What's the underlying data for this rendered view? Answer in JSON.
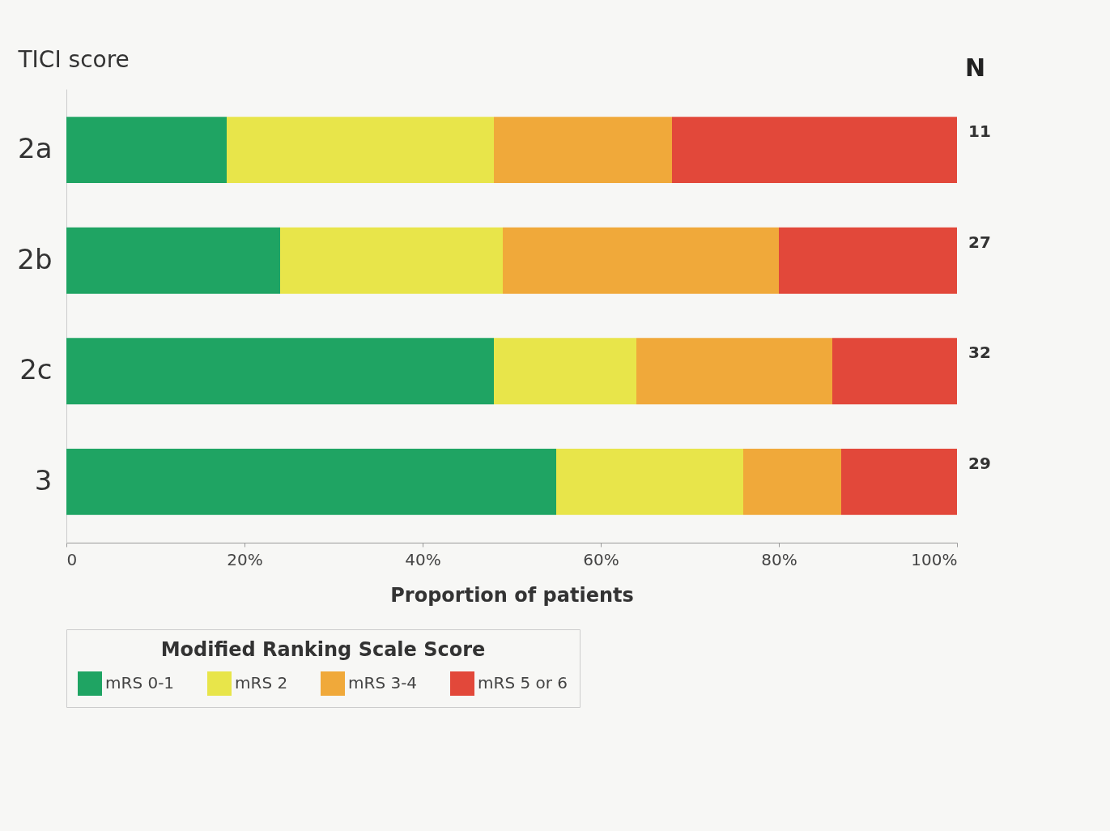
{
  "chart_data": {
    "type": "bar",
    "orientation": "horizontal",
    "stacked": true,
    "ylabel": "TICI score",
    "xlabel": "Proportion of patients",
    "legend_title": "Modified Ranking Scale Score",
    "legend": "bottom",
    "grid": false,
    "categories": [
      "2a",
      "2b",
      "2c",
      "3"
    ],
    "xlim": [
      0,
      100
    ],
    "xticks": [
      0,
      {
        "value": 20,
        "label": "20%"
      },
      {
        "value": 40,
        "label": "40%"
      },
      {
        "value": 60,
        "label": "60%"
      },
      {
        "value": 80,
        "label": "80%"
      },
      {
        "value": 100,
        "label": "100%"
      }
    ],
    "series": [
      {
        "name": "mRS 0-1",
        "color": "#1fa463",
        "values": [
          18,
          24,
          48,
          55
        ]
      },
      {
        "name": "mRS 2",
        "color": "#e8e54a",
        "values": [
          30,
          25,
          16,
          21
        ]
      },
      {
        "name": "mRS 3-4",
        "color": "#f0a93a",
        "values": [
          20,
          31,
          22,
          11
        ]
      },
      {
        "name": "mRS 5 or 6",
        "color": "#e2483a",
        "values": [
          32,
          20,
          14,
          13
        ]
      }
    ],
    "annotations": [
      "N",
      "11",
      "27",
      "32",
      "29"
    ]
  }
}
